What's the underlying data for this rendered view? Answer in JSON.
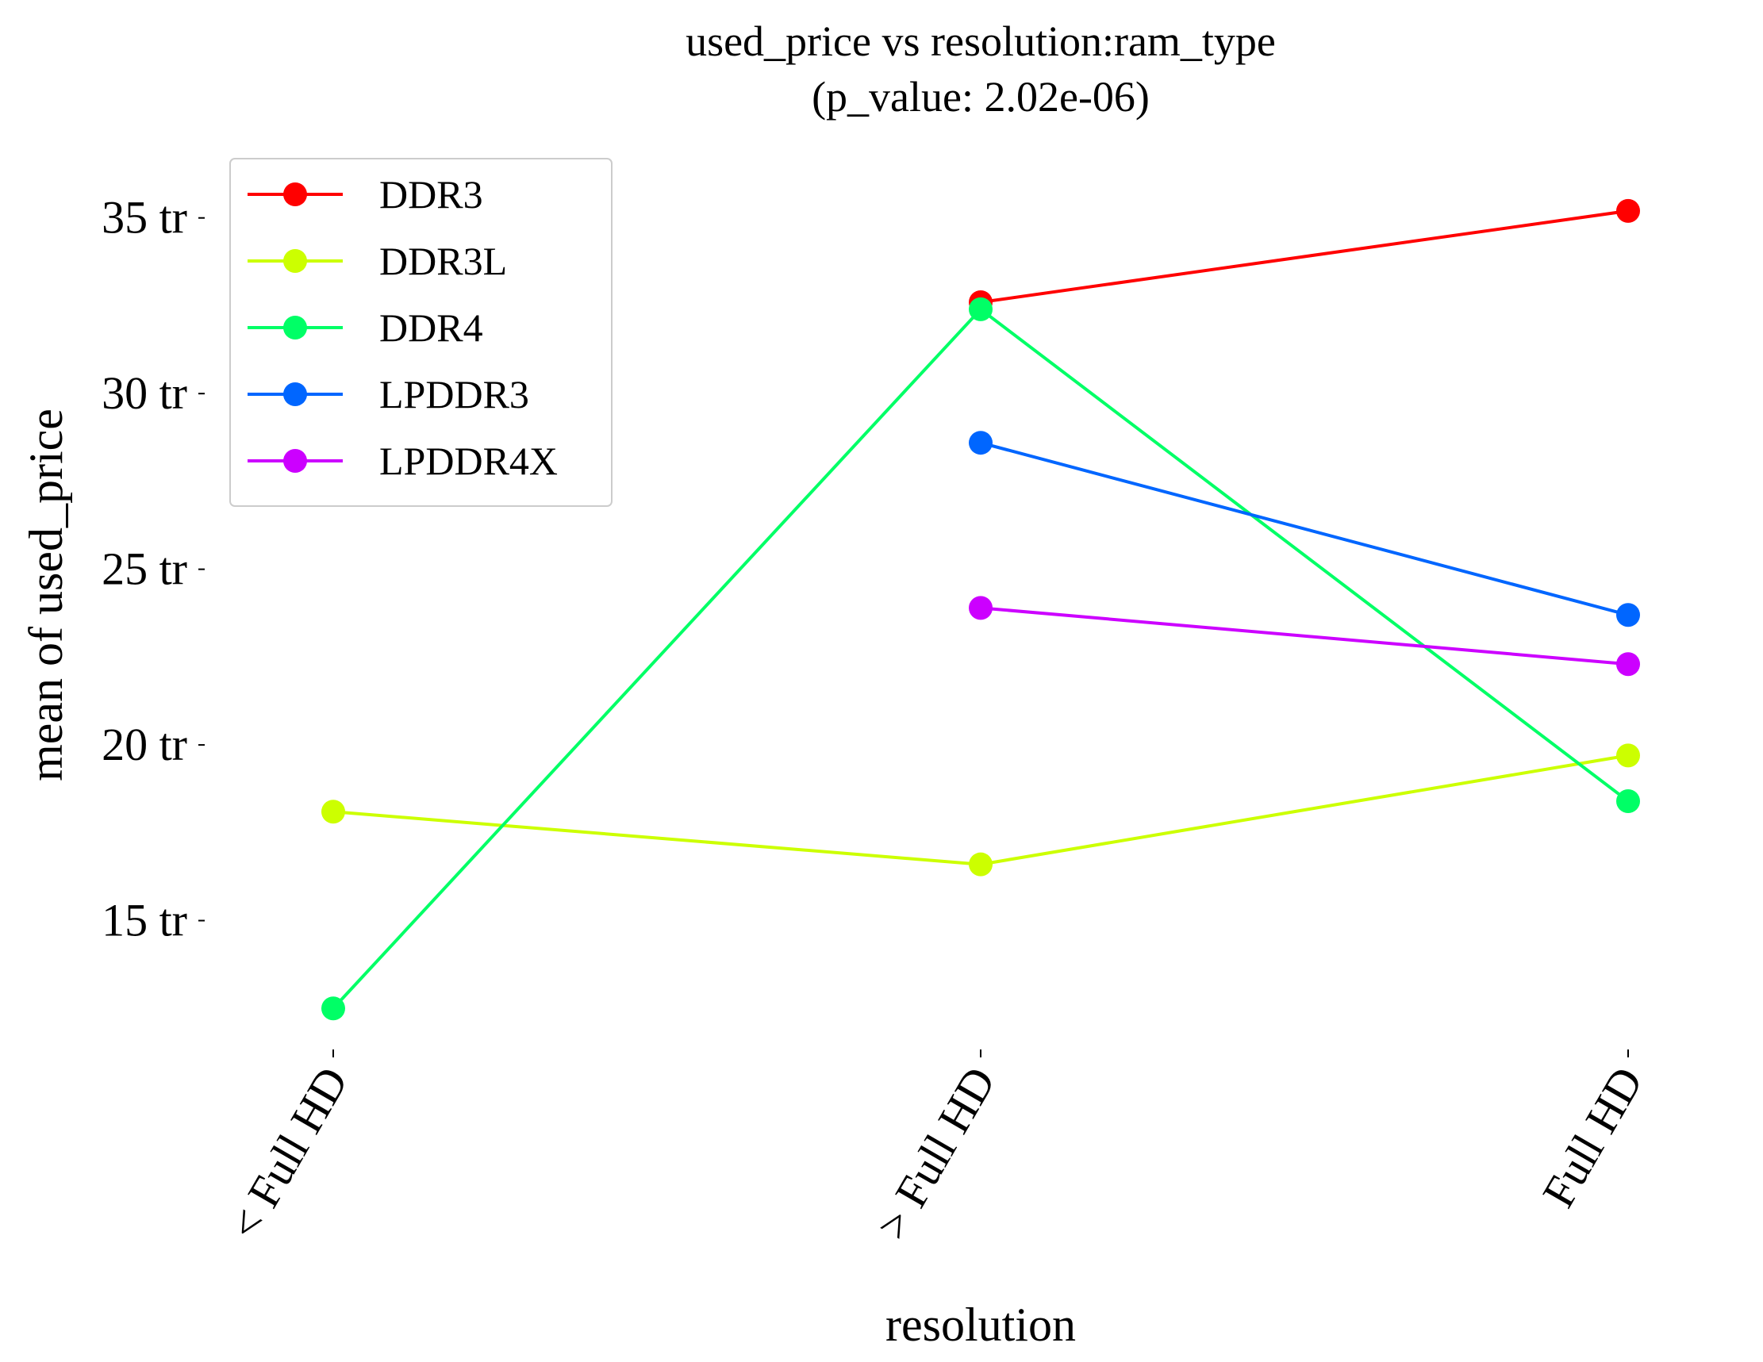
{
  "chart_data": {
    "type": "line",
    "title_line1": "used_price vs resolution:ram_type",
    "title_line2": "(p_value: 2.02e-06)",
    "xlabel": "resolution",
    "ylabel": "mean of used_price",
    "categories": [
      "< Full HD",
      "> Full HD",
      "Full HD"
    ],
    "y_ticks": [
      {
        "value": 15,
        "label": "15 tr"
      },
      {
        "value": 20,
        "label": "20 tr"
      },
      {
        "value": 25,
        "label": "25 tr"
      },
      {
        "value": 30,
        "label": "30 tr"
      },
      {
        "value": 35,
        "label": "35 tr"
      }
    ],
    "ylim": [
      11.4,
      36.8
    ],
    "grid": false,
    "legend_position": "top-left",
    "series": [
      {
        "name": "DDR3",
        "color": "#ff0000",
        "values": [
          null,
          32.6,
          35.2
        ]
      },
      {
        "name": "DDR3L",
        "color": "#ccff00",
        "values": [
          18.1,
          16.6,
          19.7
        ]
      },
      {
        "name": "DDR4",
        "color": "#00ff66",
        "values": [
          12.5,
          32.4,
          18.4
        ]
      },
      {
        "name": "LPDDR3",
        "color": "#0066ff",
        "values": [
          null,
          28.6,
          23.7
        ]
      },
      {
        "name": "LPDDR4X",
        "color": "#cc00ff",
        "values": [
          null,
          23.9,
          22.3
        ]
      }
    ]
  }
}
